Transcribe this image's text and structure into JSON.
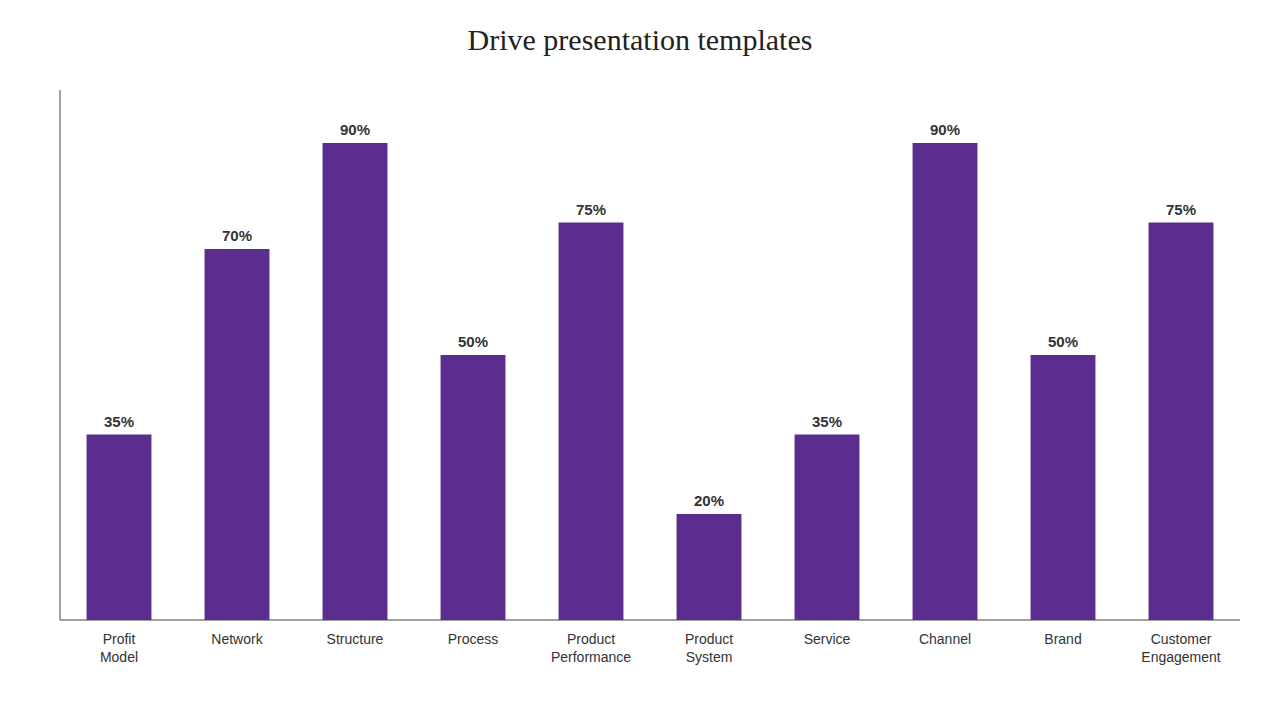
{
  "chart_data": {
    "type": "bar",
    "title": "Drive presentation templates",
    "categories": [
      "Profit\nModel",
      "Network",
      "Structure",
      "Process",
      "Product\nPerformance",
      "Product\nSystem",
      "Service",
      "Channel",
      "Brand",
      "Customer\nEngagement"
    ],
    "values": [
      35,
      70,
      90,
      50,
      75,
      20,
      35,
      90,
      50,
      75
    ],
    "value_labels": [
      "35%",
      "70%",
      "90%",
      "50%",
      "75%",
      "20%",
      "35%",
      "90%",
      "50%",
      "75%"
    ],
    "color": "#5b2d8e",
    "ylim": [
      0,
      100
    ],
    "data_labels": true,
    "tick_labels": "x"
  }
}
